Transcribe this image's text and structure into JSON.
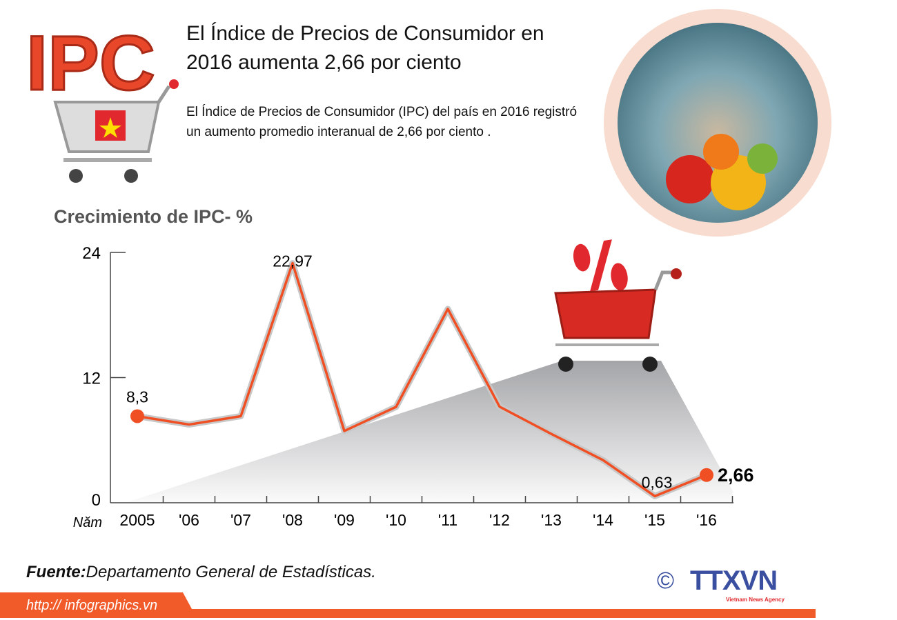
{
  "header": {
    "logo_text": "IPC",
    "title": "El Índice de Precios de Consumidor  en 2016  aumenta 2,66 por ciento",
    "description": "El Índice de Precios de Consumidor (IPC) del país en 2016 registró un aumento promedio interanual de 2,66 por ciento ."
  },
  "chart_data": {
    "type": "line",
    "title": "Crecimiento de IPC- %",
    "xlabel": "Năm",
    "ylabel": "",
    "categories": [
      "2005",
      "'06",
      "'07",
      "'08",
      "'09",
      "'10",
      "'11",
      "'12",
      "'13",
      "'14",
      "'15",
      "'16"
    ],
    "values": [
      8.3,
      7.5,
      8.3,
      22.97,
      6.88,
      9.19,
      18.58,
      9.21,
      6.6,
      4.09,
      0.63,
      2.66
    ],
    "ylim": [
      0,
      24
    ],
    "yticks": [
      "0",
      "12",
      "24"
    ],
    "data_labels": [
      {
        "index": 0,
        "text": "8,3"
      },
      {
        "index": 3,
        "text": "22,97"
      },
      {
        "index": 10,
        "text": "0,63"
      },
      {
        "index": 11,
        "text": "2,66"
      }
    ],
    "grid": false,
    "line_color": "#f04e23"
  },
  "footer": {
    "source_label": "Fuente:",
    "source_text": "Departamento General de Estadísticas.",
    "url": "http:// infographics.vn",
    "agency_symbol": "©",
    "agency": "TTXVN",
    "agency_sub": "Vietnam News Agency",
    "bar_color": "#f15a29"
  }
}
